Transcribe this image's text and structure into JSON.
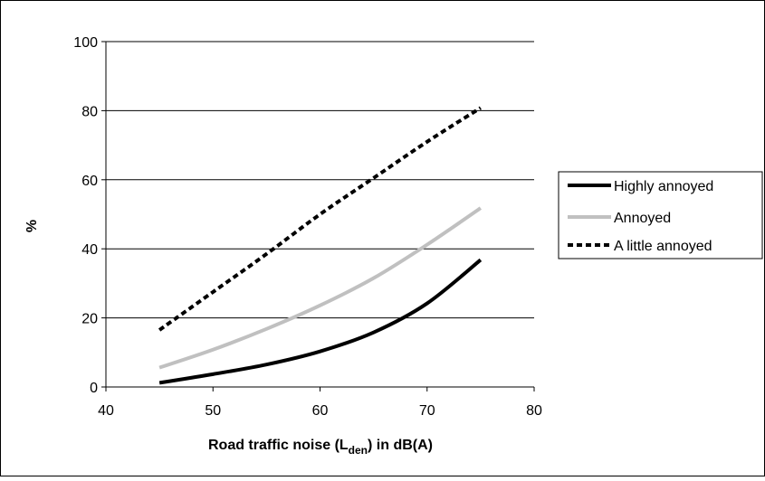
{
  "chart_data": {
    "type": "line",
    "title": "",
    "xlabel_main": "Road traffic noise (L",
    "xlabel_sub": "den",
    "xlabel_tail": ") in dB(A)",
    "ylabel": "%",
    "xlim": [
      40,
      80
    ],
    "ylim": [
      0,
      100
    ],
    "xticks": [
      "40",
      "50",
      "60",
      "70",
      "80"
    ],
    "yticks": [
      "0",
      "20",
      "40",
      "60",
      "80",
      "100"
    ],
    "grid": "horizontal",
    "legend_position": "right",
    "x": [
      45,
      50,
      55,
      60,
      65,
      70,
      75
    ],
    "series": [
      {
        "name": "Highly annoyed",
        "values": [
          1.2,
          3.7,
          6.5,
          10.3,
          15.8,
          24.2,
          36.8
        ],
        "color": "#000000",
        "style": "solid"
      },
      {
        "name": "Annoyed",
        "values": [
          5.6,
          10.8,
          16.8,
          23.6,
          31.5,
          41.2,
          51.8
        ],
        "color": "#c0c0c0",
        "style": "solid"
      },
      {
        "name": "A little annoyed",
        "values": [
          16.5,
          27.5,
          38.5,
          50.0,
          60.5,
          71.0,
          80.8
        ],
        "color": "#000000",
        "style": "dashed"
      }
    ]
  }
}
